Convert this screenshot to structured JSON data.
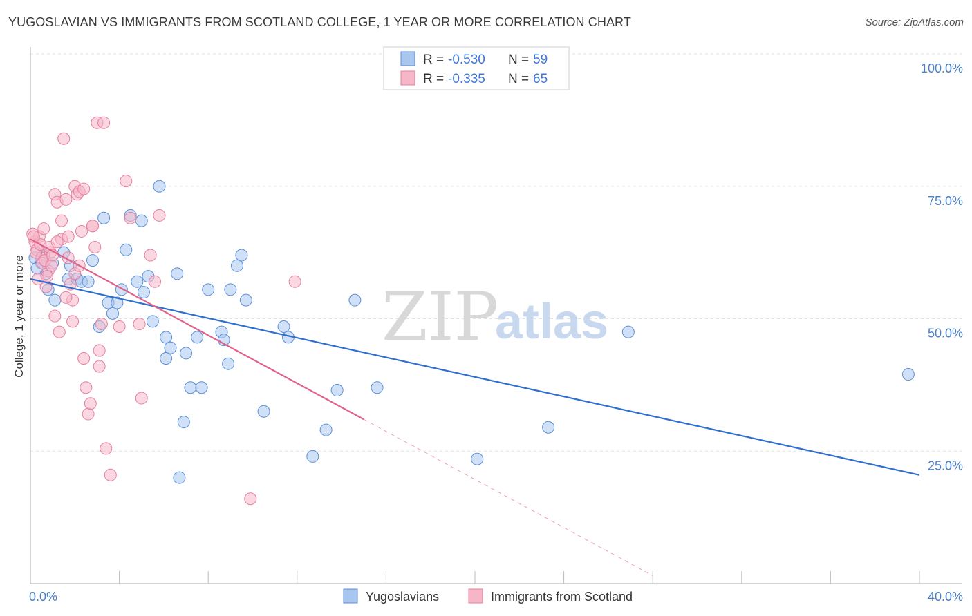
{
  "title": "YUGOSLAVIAN VS IMMIGRANTS FROM SCOTLAND COLLEGE, 1 YEAR OR MORE CORRELATION CHART",
  "source": "Source: ZipAtlas.com",
  "watermark": {
    "zip": "ZIP",
    "atlas": "atlas"
  },
  "legend": {
    "r_label": "R = ",
    "n_label": "N = ",
    "rows": [
      {
        "r": "-0.530",
        "n": "59",
        "color": "#a9c6ee"
      },
      {
        "r": "-0.335",
        "n": "65",
        "color": "#f5b6c8"
      }
    ]
  },
  "chart_data": {
    "type": "scatter",
    "title": "YUGOSLAVIAN VS IMMIGRANTS FROM SCOTLAND COLLEGE, 1 YEAR OR MORE CORRELATION CHART",
    "ylabel": "College, 1 year or more",
    "xlabel": "",
    "xlim": [
      0,
      40
    ],
    "ylim": [
      0,
      100
    ],
    "x_ticks": [
      {
        "value": 0,
        "label": "0.0%"
      },
      {
        "value": 40,
        "label": "40.0%"
      }
    ],
    "y_ticks": [
      {
        "value": 25,
        "label": "25.0%"
      },
      {
        "value": 50,
        "label": "50.0%"
      },
      {
        "value": 75,
        "label": "75.0%"
      },
      {
        "value": 100,
        "label": "100.0%"
      }
    ],
    "grid": true,
    "legend_position": "top-center",
    "series": [
      {
        "name": "Yugoslavians",
        "color": "#5a8fd8",
        "fill": "#a9c6ee",
        "trend": {
          "x0": 0,
          "y0": 57.5,
          "x1": 40,
          "y1": 20.5,
          "color": "#2f6fd0"
        },
        "points": [
          [
            0.2,
            61.5
          ],
          [
            0.5,
            60.5
          ],
          [
            0.7,
            58.5
          ],
          [
            0.8,
            55.5
          ],
          [
            1.0,
            60.5
          ],
          [
            1.1,
            53.5
          ],
          [
            1.5,
            62.5
          ],
          [
            1.7,
            57.5
          ],
          [
            1.8,
            60.0
          ],
          [
            2.1,
            57.5
          ],
          [
            2.3,
            57.0
          ],
          [
            2.6,
            57.0
          ],
          [
            2.8,
            61.0
          ],
          [
            3.1,
            48.5
          ],
          [
            3.3,
            69.0
          ],
          [
            3.5,
            53.0
          ],
          [
            3.7,
            51.0
          ],
          [
            3.9,
            53.0
          ],
          [
            4.1,
            55.5
          ],
          [
            4.3,
            63.0
          ],
          [
            4.5,
            69.5
          ],
          [
            4.8,
            57.0
          ],
          [
            5.0,
            68.5
          ],
          [
            5.1,
            55.0
          ],
          [
            5.3,
            58.0
          ],
          [
            5.5,
            49.5
          ],
          [
            5.8,
            75.0
          ],
          [
            6.1,
            46.5
          ],
          [
            6.1,
            42.5
          ],
          [
            6.3,
            44.5
          ],
          [
            6.6,
            58.5
          ],
          [
            6.7,
            20.0
          ],
          [
            6.9,
            30.5
          ],
          [
            7.0,
            43.5
          ],
          [
            7.2,
            37.0
          ],
          [
            7.5,
            46.5
          ],
          [
            7.7,
            37.0
          ],
          [
            8.0,
            55.5
          ],
          [
            8.6,
            47.5
          ],
          [
            8.7,
            46.0
          ],
          [
            8.9,
            41.5
          ],
          [
            9.0,
            55.5
          ],
          [
            9.3,
            60.0
          ],
          [
            9.5,
            62.0
          ],
          [
            9.7,
            53.5
          ],
          [
            10.5,
            32.5
          ],
          [
            11.4,
            48.5
          ],
          [
            11.6,
            46.5
          ],
          [
            12.7,
            24.0
          ],
          [
            13.3,
            29.0
          ],
          [
            13.8,
            36.5
          ],
          [
            14.6,
            53.5
          ],
          [
            15.6,
            37.0
          ],
          [
            20.1,
            23.5
          ],
          [
            23.3,
            29.5
          ],
          [
            26.9,
            47.5
          ],
          [
            39.5,
            39.5
          ],
          [
            0.3,
            59.5
          ],
          [
            0.6,
            62.0
          ]
        ]
      },
      {
        "name": "Immigrants from Scotland",
        "color": "#e67fa0",
        "fill": "#f5b6c8",
        "trend": {
          "x0": 0,
          "y0": 65.0,
          "x1": 15.0,
          "y1": 31.0,
          "color": "#e0608a"
        },
        "trend_ext": {
          "x0": 15.0,
          "y0": 31.0,
          "x1": 28.0,
          "y1": 1.5
        },
        "points": [
          [
            0.2,
            64.5
          ],
          [
            0.3,
            63.0
          ],
          [
            0.4,
            65.5
          ],
          [
            0.5,
            61.5
          ],
          [
            0.6,
            67.0
          ],
          [
            0.7,
            56.0
          ],
          [
            0.8,
            59.0
          ],
          [
            0.9,
            62.5
          ],
          [
            1.1,
            73.5
          ],
          [
            1.1,
            50.5
          ],
          [
            1.2,
            72.0
          ],
          [
            1.3,
            47.5
          ],
          [
            1.4,
            68.5
          ],
          [
            1.4,
            65.0
          ],
          [
            1.5,
            84.0
          ],
          [
            1.6,
            72.5
          ],
          [
            1.7,
            61.5
          ],
          [
            1.7,
            65.5
          ],
          [
            1.8,
            56.5
          ],
          [
            1.9,
            53.5
          ],
          [
            1.9,
            49.5
          ],
          [
            2.0,
            58.5
          ],
          [
            2.0,
            75.0
          ],
          [
            2.1,
            73.5
          ],
          [
            2.2,
            74.0
          ],
          [
            2.3,
            66.5
          ],
          [
            2.4,
            74.5
          ],
          [
            2.4,
            42.5
          ],
          [
            2.5,
            37.0
          ],
          [
            2.6,
            32.0
          ],
          [
            2.7,
            34.0
          ],
          [
            2.8,
            67.5
          ],
          [
            2.8,
            67.5
          ],
          [
            2.9,
            63.5
          ],
          [
            3.0,
            87.0
          ],
          [
            3.1,
            44.0
          ],
          [
            3.1,
            41.0
          ],
          [
            3.2,
            49.0
          ],
          [
            3.3,
            87.0
          ],
          [
            3.4,
            25.5
          ],
          [
            3.6,
            20.5
          ],
          [
            4.0,
            48.5
          ],
          [
            4.3,
            76.0
          ],
          [
            4.5,
            69.0
          ],
          [
            4.9,
            49.0
          ],
          [
            5.0,
            35.0
          ],
          [
            5.4,
            62.0
          ],
          [
            5.6,
            57.0
          ],
          [
            5.8,
            69.5
          ],
          [
            9.9,
            16.0
          ],
          [
            11.9,
            57.0
          ],
          [
            0.1,
            66.0
          ],
          [
            0.25,
            62.5
          ],
          [
            0.45,
            64.0
          ],
          [
            0.55,
            60.5
          ],
          [
            0.65,
            61.0
          ],
          [
            0.75,
            58.0
          ],
          [
            0.85,
            63.5
          ],
          [
            0.95,
            60.0
          ],
          [
            1.0,
            62.0
          ],
          [
            1.2,
            64.5
          ],
          [
            1.6,
            54.0
          ],
          [
            2.2,
            60.0
          ],
          [
            0.35,
            57.5
          ],
          [
            0.15,
            65.5
          ]
        ]
      }
    ]
  },
  "bottom_legend": [
    "Yugoslavians",
    "Immigrants from Scotland"
  ]
}
